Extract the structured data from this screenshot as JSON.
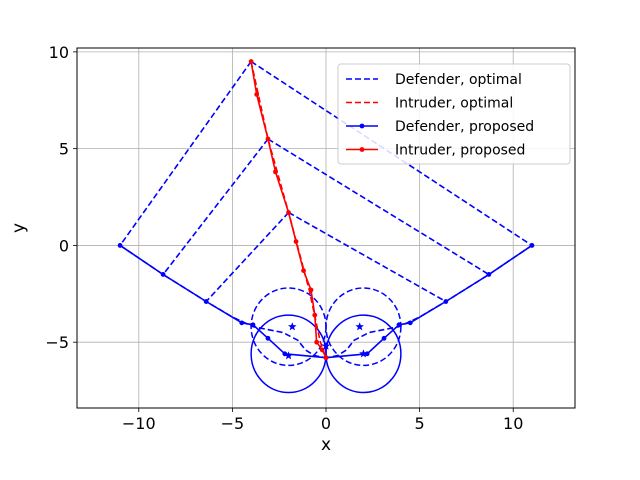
{
  "chart_data": {
    "type": "line",
    "title": "",
    "xlabel": "x",
    "ylabel": "y",
    "xlim": [
      -13.3,
      13.3
    ],
    "ylim": [
      -8.4,
      10.2
    ],
    "xticks": [
      -10,
      -5,
      0,
      5,
      10
    ],
    "yticks": [
      -5,
      0,
      5,
      10
    ],
    "xtick_labels": [
      "−10",
      "−5",
      "0",
      "5",
      "10"
    ],
    "ytick_labels": [
      "−5",
      "0",
      "5",
      "10"
    ],
    "grid": true,
    "legend_position": "top-right",
    "colors": {
      "defender": "#0000ff",
      "intruder": "#ff0000"
    },
    "legend": [
      {
        "label": "Defender, optimal",
        "color": "#0000ff",
        "style": "dashed",
        "marker": false
      },
      {
        "label": "Intruder, optimal",
        "color": "#ff0000",
        "style": "dashed",
        "marker": false
      },
      {
        "label": "Defender, proposed",
        "color": "#0000ff",
        "style": "solid",
        "marker": true
      },
      {
        "label": "Intruder, proposed",
        "color": "#ff0000",
        "style": "solid",
        "marker": true
      }
    ],
    "series": [
      {
        "color": "#0000ff",
        "style": "dashed",
        "points": [
          [
            -4,
            9.5
          ],
          [
            11,
            0
          ]
        ]
      },
      {
        "color": "#0000ff",
        "style": "dashed",
        "points": [
          [
            -4,
            9.5
          ],
          [
            -11,
            0
          ]
        ]
      },
      {
        "color": "#0000ff",
        "style": "dashed",
        "points": [
          [
            -3.1,
            5.5
          ],
          [
            8.7,
            -1.5
          ]
        ]
      },
      {
        "color": "#0000ff",
        "style": "dashed",
        "points": [
          [
            -3.1,
            5.5
          ],
          [
            -8.7,
            -1.5
          ]
        ]
      },
      {
        "color": "#0000ff",
        "style": "dashed",
        "points": [
          [
            -2,
            1.7
          ],
          [
            6.4,
            -2.9
          ]
        ]
      },
      {
        "color": "#0000ff",
        "style": "dashed",
        "points": [
          [
            -2,
            1.7
          ],
          [
            -6.4,
            -2.9
          ]
        ]
      },
      {
        "color": "#0000ff",
        "style": "dashed",
        "points": [
          [
            -11,
            0
          ],
          [
            -8.7,
            -1.5
          ],
          [
            -6.4,
            -2.9
          ],
          [
            -5,
            -3.7
          ],
          [
            -3.9,
            -4.2
          ],
          [
            -2.3,
            -4.5
          ],
          [
            -1.5,
            -4.9
          ],
          [
            -1.1,
            -5.4
          ],
          [
            -0.6,
            -5.7
          ],
          [
            0,
            -5.8
          ]
        ]
      },
      {
        "color": "#0000ff",
        "style": "dashed",
        "points": [
          [
            11,
            0
          ],
          [
            8.7,
            -1.5
          ],
          [
            6.4,
            -2.9
          ],
          [
            5,
            -3.7
          ],
          [
            3.9,
            -4.2
          ],
          [
            2.3,
            -4.5
          ],
          [
            1.5,
            -4.9
          ],
          [
            1.1,
            -5.4
          ],
          [
            0.6,
            -5.7
          ],
          [
            0,
            -5.8
          ]
        ]
      },
      {
        "color": "#ff0000",
        "style": "dashed",
        "points": [
          [
            -4,
            9.5
          ],
          [
            -3.1,
            5.5
          ],
          [
            -2,
            1.7
          ],
          [
            -0.9,
            -2.3
          ],
          [
            -0.3,
            -5.0
          ],
          [
            0,
            -5.8
          ]
        ]
      },
      {
        "color": "#0000ff",
        "style": "solid",
        "marker": true,
        "points": [
          [
            -11,
            0
          ],
          [
            -8.7,
            -1.5
          ],
          [
            -6.4,
            -2.9
          ],
          [
            -4.5,
            -4.0
          ],
          [
            -3.9,
            -4.1
          ],
          [
            -3.1,
            -4.8
          ],
          [
            -2.2,
            -5.6
          ],
          [
            0,
            -5.8
          ]
        ]
      },
      {
        "color": "#0000ff",
        "style": "solid",
        "marker": true,
        "points": [
          [
            11,
            0
          ],
          [
            8.7,
            -1.5
          ],
          [
            6.4,
            -2.9
          ],
          [
            4.5,
            -4.0
          ],
          [
            3.9,
            -4.1
          ],
          [
            3.1,
            -4.8
          ],
          [
            2.2,
            -5.6
          ],
          [
            0,
            -5.8
          ]
        ]
      },
      {
        "color": "#ff0000",
        "style": "solid",
        "marker": true,
        "points": [
          [
            -4,
            9.5
          ],
          [
            -3.7,
            7.8
          ],
          [
            -3.1,
            5.5
          ],
          [
            -2.7,
            3.8
          ],
          [
            -2,
            1.7
          ],
          [
            -1.6,
            0.2
          ],
          [
            -1.2,
            -1.3
          ],
          [
            -0.8,
            -2.3
          ],
          [
            -0.6,
            -3.6
          ],
          [
            -0.5,
            -5.0
          ],
          [
            -0.2,
            -5.4
          ],
          [
            0,
            -5.8
          ]
        ]
      }
    ],
    "circles": [
      {
        "cx": -2,
        "cy": -4.2,
        "r": 2,
        "style": "dashed",
        "color": "#0000ff"
      },
      {
        "cx": 2,
        "cy": -4.2,
        "r": 2,
        "style": "dashed",
        "color": "#0000ff"
      },
      {
        "cx": -2,
        "cy": -5.6,
        "r": 2,
        "style": "solid",
        "color": "#0000ff"
      },
      {
        "cx": 2,
        "cy": -5.6,
        "r": 2,
        "style": "solid",
        "color": "#0000ff"
      }
    ],
    "stars": [
      [
        -1.8,
        -4.2
      ],
      [
        1.8,
        -4.2
      ],
      [
        -2.0,
        -5.7
      ],
      [
        2.0,
        -5.6
      ],
      [
        0,
        -5.2
      ]
    ]
  }
}
